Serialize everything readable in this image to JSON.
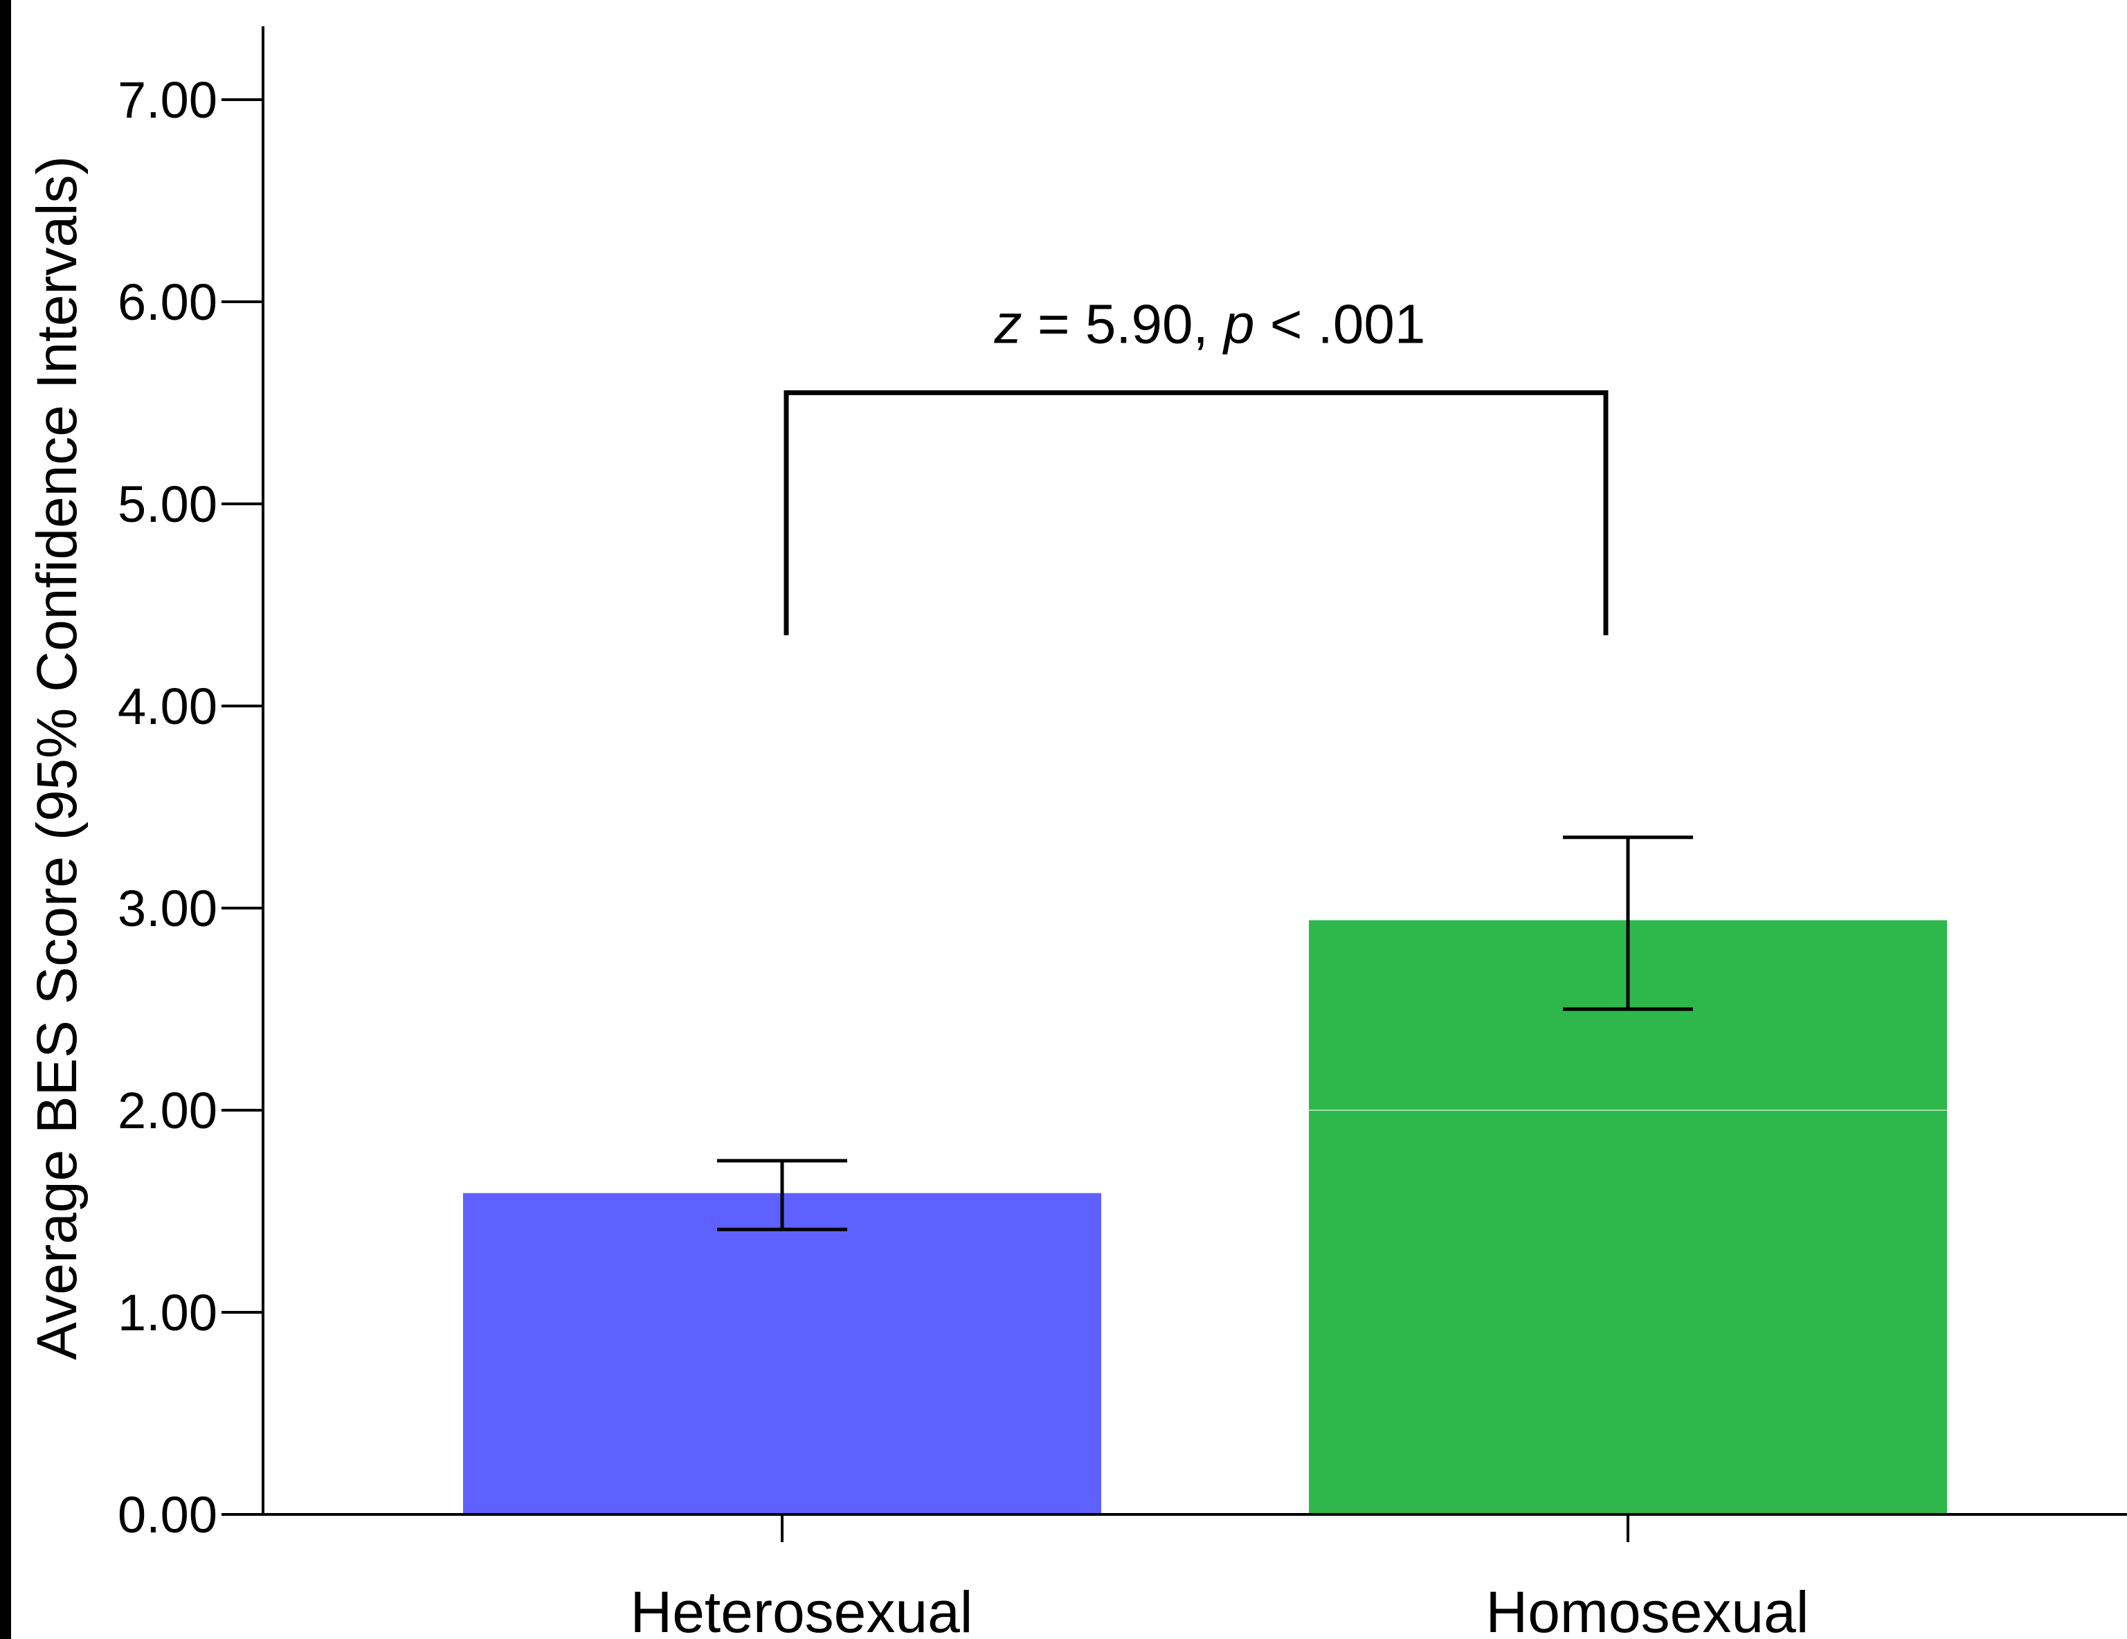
{
  "chart_data": {
    "type": "bar",
    "title": "",
    "xlabel": "",
    "ylabel": "Average BES Score (95% Confidence Intervals)",
    "ylim": [
      0,
      7.3
    ],
    "yticks": [
      "0.00",
      "1.00",
      "2.00",
      "3.00",
      "4.00",
      "5.00",
      "6.00",
      "7.00"
    ],
    "categories": [
      "Heterosexual",
      "Homosexual"
    ],
    "values": [
      1.59,
      2.94
    ],
    "ci_lower": [
      1.41,
      2.5
    ],
    "ci_upper": [
      1.75,
      3.35
    ],
    "colors": [
      "#5f61ff",
      "#2eb84b"
    ],
    "grid": false,
    "annotation": {
      "z_symbol": "z",
      "z_rest": " = 5.90, ",
      "p_symbol": "p",
      "p_rest": " < .001",
      "bracket_low": 4.35,
      "bracket_high": 5.55
    }
  }
}
